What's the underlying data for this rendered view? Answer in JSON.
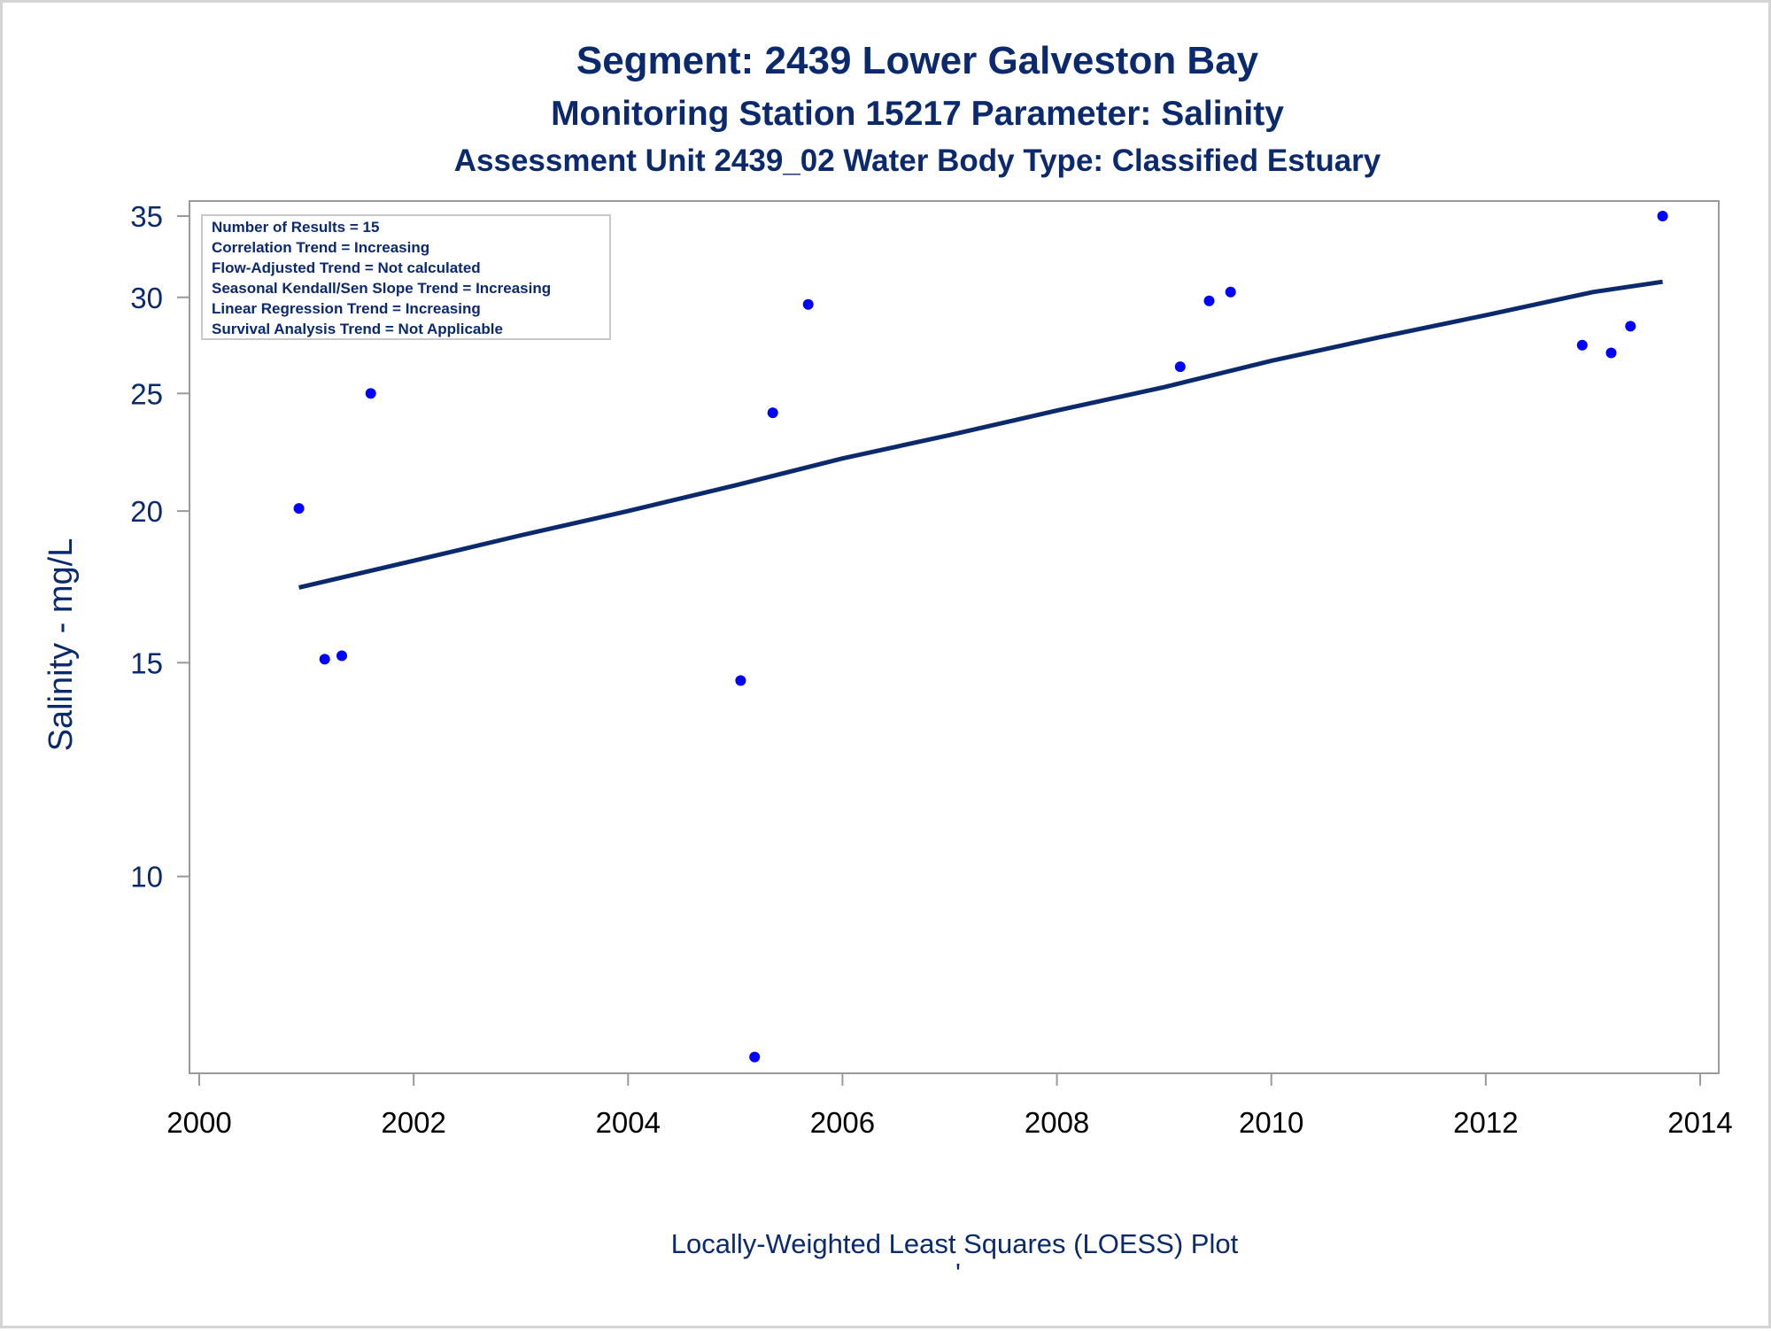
{
  "chart_data": {
    "type": "scatter",
    "title": "Segment: 2439  Lower Galveston Bay",
    "subtitle": "Monitoring Station 15217 Parameter: Salinity",
    "subtitle2": "Assessment Unit 2439_02   Water Body Type: Classified Estuary",
    "xlabel": "Locally-Weighted Least Squares (LOESS) Plot",
    "ylabel": "Salinity - mg/L",
    "footnote_mark": "'",
    "yscale": "log",
    "xlim": [
      2000,
      2014
    ],
    "ylim": [
      7,
      35
    ],
    "xticks": [
      2000,
      2002,
      2004,
      2006,
      2008,
      2010,
      2012,
      2014
    ],
    "yticks": [
      10,
      15,
      20,
      25,
      30,
      35
    ],
    "grid": false,
    "colors": {
      "points": "#0000ff",
      "trend_line": "#0b2a6e",
      "text": "#0b2a6e"
    },
    "points": [
      {
        "x": 2000.93,
        "y": 20.1
      },
      {
        "x": 2001.17,
        "y": 15.1
      },
      {
        "x": 2001.33,
        "y": 15.2
      },
      {
        "x": 2001.6,
        "y": 25.0
      },
      {
        "x": 2005.05,
        "y": 14.5
      },
      {
        "x": 2005.18,
        "y": 7.1
      },
      {
        "x": 2005.35,
        "y": 24.1
      },
      {
        "x": 2005.68,
        "y": 29.6
      },
      {
        "x": 2009.15,
        "y": 26.3
      },
      {
        "x": 2009.42,
        "y": 29.8
      },
      {
        "x": 2009.62,
        "y": 30.3
      },
      {
        "x": 2012.9,
        "y": 27.4
      },
      {
        "x": 2013.17,
        "y": 27.0
      },
      {
        "x": 2013.35,
        "y": 28.4
      },
      {
        "x": 2013.65,
        "y": 35.0
      }
    ],
    "trend_line": {
      "name": "LOESS",
      "x": [
        2000.93,
        2002.0,
        2003.0,
        2004.0,
        2005.0,
        2006.0,
        2007.0,
        2008.0,
        2009.0,
        2010.0,
        2011.0,
        2012.0,
        2013.0,
        2013.65
      ],
      "y": [
        17.3,
        18.2,
        19.1,
        20.0,
        21.0,
        22.1,
        23.1,
        24.2,
        25.3,
        26.6,
        27.8,
        29.0,
        30.3,
        30.9
      ]
    }
  },
  "legend_box": {
    "lines": [
      "Number of Results = 15",
      "Correlation Trend = Increasing",
      "Flow-Adjusted Trend = Not calculated",
      "Seasonal Kendall/Sen Slope Trend = Increasing",
      "Linear Regression Trend = Increasing",
      "Survival Analysis Trend = Not Applicable"
    ],
    "placement": "top-left"
  }
}
